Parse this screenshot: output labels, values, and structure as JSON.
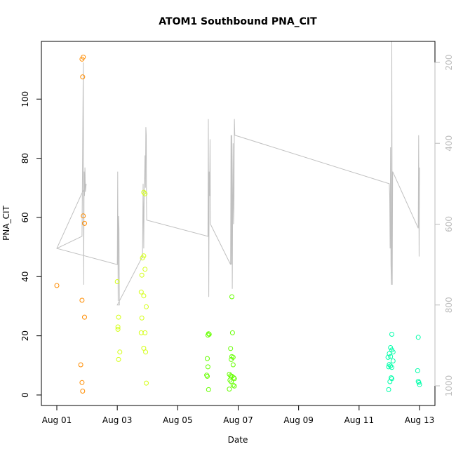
{
  "chart_data": {
    "type": "scatter",
    "title": "ATOM1 Southbound PNA_CIT",
    "xlabel": "Date",
    "ylabel": "PNA_CIT",
    "x_axis": {
      "kind": "date",
      "range": [
        "2016-08-01",
        "2016-08-13"
      ],
      "ticks": [
        "Aug 01",
        "Aug 03",
        "Aug 05",
        "Aug 07",
        "Aug 09",
        "Aug 11",
        "Aug 13"
      ]
    },
    "y_axis": {
      "range": [
        0,
        115
      ],
      "ticks": [
        0,
        20,
        40,
        60,
        80,
        100
      ]
    },
    "y2_axis": {
      "reversed": true,
      "range": [
        1030,
        120
      ],
      "ticks": [
        200,
        400,
        600,
        800,
        1000
      ],
      "color": "#bbbbbb"
    },
    "series": [
      {
        "color": "#ff8c00",
        "points": [
          [
            "2016-08-01 00:00",
            37.0
          ],
          [
            "2016-08-01 20:00",
            113.5
          ],
          [
            "2016-08-01 21:00",
            114.2
          ],
          [
            "2016-08-01 20:30",
            107.5
          ],
          [
            "2016-08-01 21:00",
            60.5
          ],
          [
            "2016-08-01 22:00",
            58.0
          ],
          [
            "2016-08-01 20:00",
            32.0
          ],
          [
            "2016-08-01 22:00",
            26.3
          ],
          [
            "2016-08-01 19:00",
            10.2
          ],
          [
            "2016-08-01 20:00",
            4.2
          ],
          [
            "2016-08-01 20:30",
            1.3
          ]
        ]
      },
      {
        "color": "#d4ff14",
        "points": [
          [
            "2016-08-03 00:00",
            38.3
          ],
          [
            "2016-08-03 01:00",
            26.3
          ],
          [
            "2016-08-03 00:30",
            23.0
          ],
          [
            "2016-08-03 00:30",
            22.2
          ],
          [
            "2016-08-03 02:00",
            14.5
          ],
          [
            "2016-08-03 01:00",
            12.0
          ],
          [
            "2016-08-03 21:00",
            68.5
          ],
          [
            "2016-08-03 22:00",
            68.0
          ],
          [
            "2016-08-03 21:00",
            47.0
          ],
          [
            "2016-08-03 20:00",
            46.3
          ],
          [
            "2016-08-03 22:00",
            42.5
          ],
          [
            "2016-08-03 19:30",
            40.5
          ],
          [
            "2016-08-03 19:00",
            34.8
          ],
          [
            "2016-08-03 21:00",
            33.5
          ],
          [
            "2016-08-03 23:00",
            29.8
          ],
          [
            "2016-08-03 19:30",
            26.0
          ],
          [
            "2016-08-03 19:00",
            21.0
          ],
          [
            "2016-08-03 22:00",
            21.0
          ],
          [
            "2016-08-03 21:00",
            15.8
          ],
          [
            "2016-08-03 22:30",
            14.5
          ],
          [
            "2016-08-03 23:00",
            4.0
          ]
        ]
      },
      {
        "color": "#66ff00",
        "points": [
          [
            "2016-08-06 00:00",
            20.2
          ],
          [
            "2016-08-06 00:30",
            20.7
          ],
          [
            "2016-08-06 01:00",
            20.5
          ],
          [
            "2016-08-05 23:30",
            12.3
          ],
          [
            "2016-08-06 00:00",
            9.5
          ],
          [
            "2016-08-05 23:00",
            6.7
          ],
          [
            "2016-08-05 23:30",
            6.3
          ],
          [
            "2016-08-06 00:30",
            1.8
          ],
          [
            "2016-08-06 19:00",
            33.2
          ],
          [
            "2016-08-06 19:30",
            21.0
          ],
          [
            "2016-08-06 18:00",
            15.7
          ],
          [
            "2016-08-06 19:00",
            13.0
          ],
          [
            "2016-08-06 20:00",
            12.7
          ],
          [
            "2016-08-06 18:30",
            12.0
          ],
          [
            "2016-08-06 20:00",
            10.2
          ],
          [
            "2016-08-06 17:00",
            7.0
          ],
          [
            "2016-08-06 18:00",
            6.5
          ],
          [
            "2016-08-06 19:00",
            6.3
          ],
          [
            "2016-08-06 20:30",
            5.8
          ],
          [
            "2016-08-06 21:00",
            5.5
          ],
          [
            "2016-08-06 17:30",
            5.0
          ],
          [
            "2016-08-06 18:30",
            4.5
          ],
          [
            "2016-08-06 20:00",
            3.3
          ],
          [
            "2016-08-06 21:00",
            3.0
          ],
          [
            "2016-08-06 17:00",
            2.0
          ]
        ]
      },
      {
        "color": "#00ffaa",
        "points": [
          [
            "2016-08-12 02:00",
            20.5
          ],
          [
            "2016-08-12 01:00",
            16.0
          ],
          [
            "2016-08-12 02:00",
            15.2
          ],
          [
            "2016-08-12 03:00",
            14.5
          ],
          [
            "2016-08-12 00:00",
            14.0
          ],
          [
            "2016-08-12 01:00",
            13.0
          ],
          [
            "2016-08-11 23:00",
            12.7
          ],
          [
            "2016-08-12 03:00",
            11.5
          ],
          [
            "2016-08-12 00:00",
            10.3
          ],
          [
            "2016-08-12 01:00",
            9.8
          ],
          [
            "2016-08-11 23:30",
            9.5
          ],
          [
            "2016-08-12 02:00",
            9.3
          ],
          [
            "2016-08-12 01:30",
            5.8
          ],
          [
            "2016-08-12 02:00",
            5.5
          ],
          [
            "2016-08-12 00:30",
            4.5
          ],
          [
            "2016-08-11 23:30",
            1.8
          ],
          [
            "2016-08-12 23:00",
            19.5
          ],
          [
            "2016-08-12 22:30",
            8.2
          ],
          [
            "2016-08-12 23:00",
            4.6
          ],
          [
            "2016-08-12 23:30",
            4.2
          ],
          [
            "2016-08-13 00:00",
            3.5
          ]
        ]
      }
    ],
    "line_series": {
      "color": "#c0c0c0",
      "axis": "y2",
      "points": [
        [
          "2016-08-01 00:00",
          660
        ],
        [
          "2016-08-01 20:00",
          630
        ],
        [
          "2016-08-01 21:00",
          200
        ],
        [
          "2016-08-01 21:20",
          750
        ],
        [
          "2016-08-01 21:40",
          470
        ],
        [
          "2016-08-01 22:00",
          530
        ],
        [
          "2016-08-01 22:20",
          460
        ],
        [
          "2016-08-01 22:40",
          520
        ],
        [
          "2016-08-01 23:00",
          510
        ],
        [
          "2016-08-01 23:20",
          500
        ],
        [
          "2016-08-01 00:00",
          660
        ],
        [
          "2016-08-03 00:00",
          700
        ],
        [
          "2016-08-03 00:20",
          470
        ],
        [
          "2016-08-03 00:40",
          790
        ],
        [
          "2016-08-03 01:00",
          580
        ],
        [
          "2016-08-03 01:20",
          610
        ],
        [
          "2016-08-03 01:40",
          800
        ],
        [
          "2016-08-03 00:00",
          800
        ],
        [
          "2016-08-03 20:00",
          680
        ],
        [
          "2016-08-03 20:30",
          500
        ],
        [
          "2016-08-03 21:00",
          660
        ],
        [
          "2016-08-03 21:20",
          520
        ],
        [
          "2016-08-03 21:40",
          490
        ],
        [
          "2016-08-03 22:00",
          430
        ],
        [
          "2016-08-03 22:20",
          510
        ],
        [
          "2016-08-03 22:40",
          360
        ],
        [
          "2016-08-03 23:00",
          380
        ],
        [
          "2016-08-03 23:10",
          550
        ],
        [
          "2016-08-03 23:20",
          590
        ],
        [
          "2016-08-06 00:00",
          630
        ],
        [
          "2016-08-06 00:20",
          340
        ],
        [
          "2016-08-06 00:40",
          780
        ],
        [
          "2016-08-06 01:00",
          470
        ],
        [
          "2016-08-06 01:20",
          530
        ],
        [
          "2016-08-06 01:40",
          390
        ],
        [
          "2016-08-06 02:00",
          600
        ],
        [
          "2016-08-06 18:00",
          700
        ],
        [
          "2016-08-06 18:20",
          380
        ],
        [
          "2016-08-06 18:40",
          700
        ],
        [
          "2016-08-06 19:00",
          380
        ],
        [
          "2016-08-06 19:20",
          760
        ],
        [
          "2016-08-06 19:40",
          540
        ],
        [
          "2016-08-06 20:00",
          400
        ],
        [
          "2016-08-06 20:20",
          600
        ],
        [
          "2016-08-06 20:40",
          560
        ],
        [
          "2016-08-06 21:00",
          340
        ],
        [
          "2016-08-06 21:20",
          380
        ],
        [
          "2016-08-12 00:00",
          500
        ],
        [
          "2016-08-12 00:20",
          530
        ],
        [
          "2016-08-12 00:40",
          660
        ],
        [
          "2016-08-12 01:00",
          410
        ],
        [
          "2016-08-12 01:20",
          700
        ],
        [
          "2016-08-12 01:40",
          750
        ],
        [
          "2016-08-12 02:00",
          120
        ],
        [
          "2016-08-12 02:20",
          750
        ],
        [
          "2016-08-12 02:40",
          470
        ],
        [
          "2016-08-12 23:00",
          610
        ],
        [
          "2016-08-12 23:20",
          380
        ],
        [
          "2016-08-12 23:40",
          680
        ],
        [
          "2016-08-13 00:00",
          460
        ]
      ]
    }
  }
}
